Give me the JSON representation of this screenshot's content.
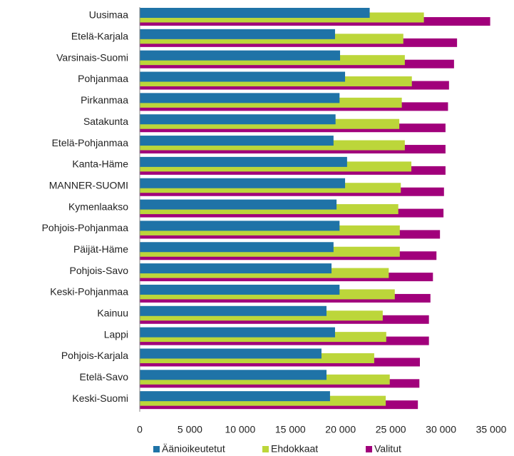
{
  "chart_data": {
    "type": "hbar",
    "categories": [
      "Uusimaa",
      "Etelä-Karjala",
      "Varsinais-Suomi",
      "Pohjanmaa",
      "Pirkanmaa",
      "Satakunta",
      "Etelä-Pohjanmaa",
      "Kanta-Häme",
      "MANNER-SUOMI",
      "Kymenlaakso",
      "Pohjois-Pohjanmaa",
      "Päijät-Häme",
      "Pohjois-Savo",
      "Keski-Pohjanmaa",
      "Kainuu",
      "Lappi",
      "Pohjois-Karjala",
      "Etelä-Savo",
      "Keski-Suomi"
    ],
    "series": [
      {
        "name": "Äänioikeutetut",
        "color": "#1f73a7",
        "values": [
          22900,
          19450,
          19950,
          20450,
          19900,
          19500,
          19300,
          20650,
          20450,
          19600,
          19900,
          19300,
          19100,
          19900,
          18600,
          19450,
          18100,
          18600,
          18950
        ]
      },
      {
        "name": "Ehdokkaat",
        "color": "#bcd63a",
        "values": [
          28300,
          26250,
          26400,
          27100,
          26100,
          25850,
          26400,
          27050,
          26000,
          25750,
          25900,
          25900,
          24800,
          25400,
          24200,
          24550,
          23350,
          24900,
          24500
        ]
      },
      {
        "name": "Valitut",
        "color": "#a1007b",
        "values": [
          34900,
          31600,
          31300,
          30800,
          30700,
          30450,
          30450,
          30450,
          30300,
          30250,
          29900,
          29550,
          29200,
          28950,
          28800,
          28800,
          27900,
          27850,
          27700
        ]
      }
    ],
    "xlim": [
      0,
      35000
    ],
    "xticks": [
      0,
      {
        "value": 5000,
        "label": "5 000"
      },
      {
        "value": 10000,
        "label": "10 000"
      },
      {
        "value": 15000,
        "label": "15 000"
      },
      {
        "value": 20000,
        "label": "20 000"
      },
      {
        "value": 25000,
        "label": "25 000"
      },
      {
        "value": 30000,
        "label": "30 000"
      },
      {
        "value": 35000,
        "label": "35 000"
      }
    ],
    "grid": false,
    "legend": "bottom"
  }
}
